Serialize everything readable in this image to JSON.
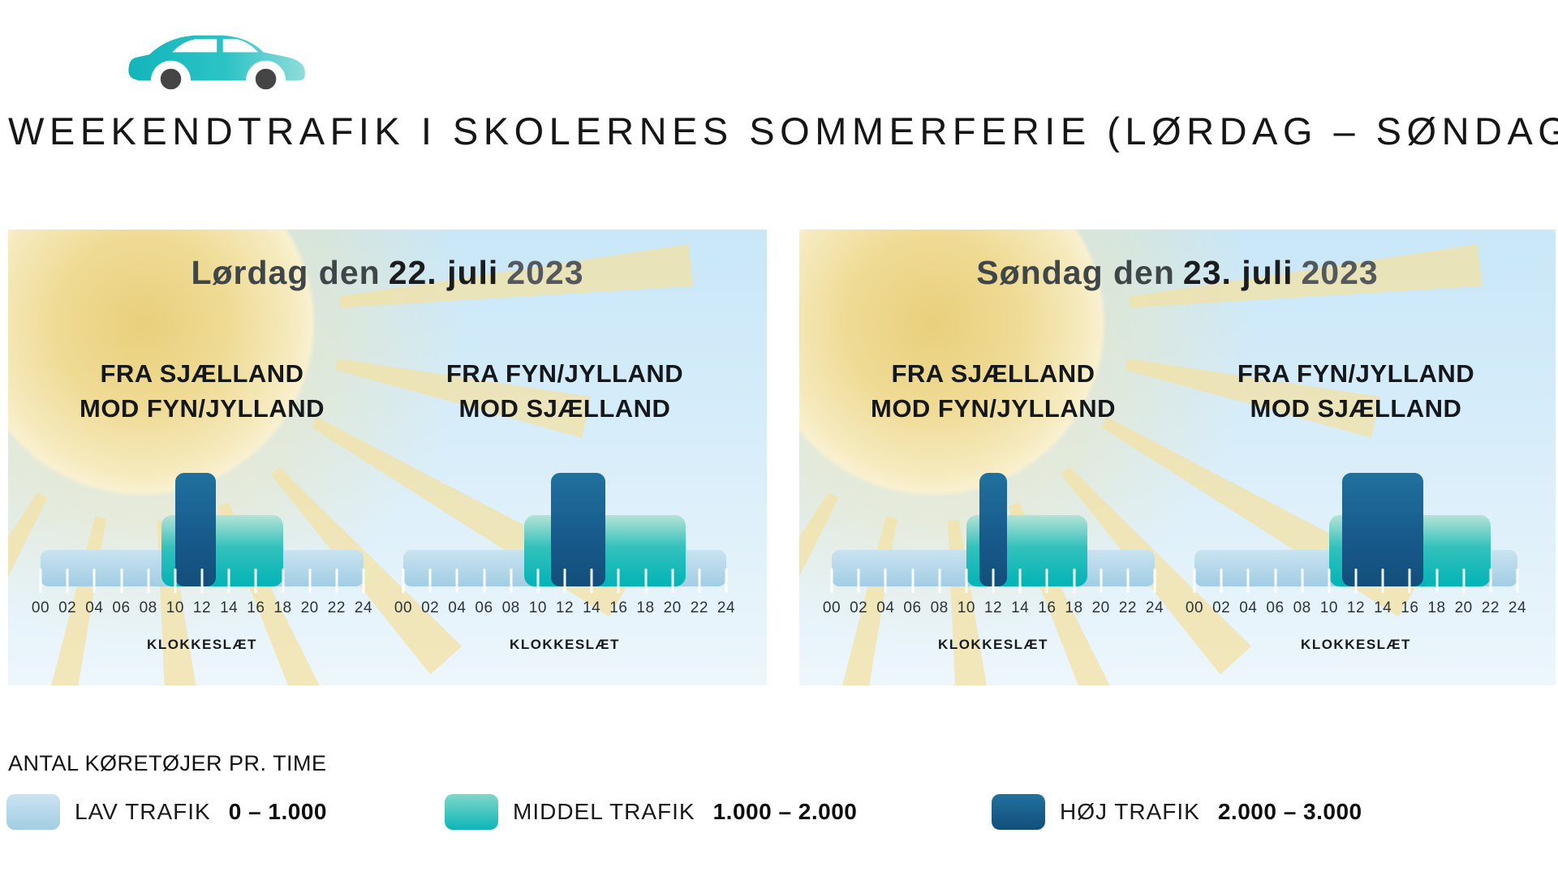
{
  "page_title": "WEEKENDTRAFIK I SKOLERNES SOMMERFERIE (LØRDAG – SØNDAG):",
  "axis": {
    "ticks": [
      "00",
      "02",
      "04",
      "06",
      "08",
      "10",
      "12",
      "14",
      "16",
      "18",
      "20",
      "22",
      "24"
    ],
    "label": "KLOKKESLÆT",
    "xlim": [
      0,
      24
    ]
  },
  "panels": [
    {
      "header": {
        "day": "Lørdag den",
        "date": "22. juli",
        "year": "2023"
      },
      "charts": [
        {
          "title1": "FRA SJÆLLAND",
          "title2": "MOD FYN/JYLLAND",
          "bands": {
            "low": [
              0,
              24
            ],
            "mid": [
              9,
              18
            ],
            "high": [
              10,
              13
            ]
          }
        },
        {
          "title1": "FRA FYN/JYLLAND",
          "title2": "MOD SJÆLLAND",
          "bands": {
            "low": [
              0,
              24
            ],
            "mid": [
              9,
              21
            ],
            "high": [
              11,
              15
            ]
          }
        }
      ]
    },
    {
      "header": {
        "day": "Søndag den",
        "date": "23. juli",
        "year": "2023"
      },
      "charts": [
        {
          "title1": "FRA SJÆLLAND",
          "title2": "MOD FYN/JYLLAND",
          "bands": {
            "low": [
              0,
              24
            ],
            "mid": [
              10,
              19
            ],
            "high": [
              11,
              13
            ]
          }
        },
        {
          "title1": "FRA FYN/JYLLAND",
          "title2": "MOD SJÆLLAND",
          "bands": {
            "low": [
              0,
              24
            ],
            "mid": [
              10,
              22
            ],
            "high": [
              11,
              17
            ]
          }
        }
      ]
    }
  ],
  "legend": {
    "heading": "ANTAL KØRETØJER PR. TIME",
    "items": [
      {
        "id": "low",
        "label": "LAV TRAFIK",
        "range": "0 – 1.000"
      },
      {
        "id": "mid",
        "label": "MIDDEL TRAFIK",
        "range": "1.000 – 2.000"
      },
      {
        "id": "high",
        "label": "HØJ TRAFIK",
        "range": "2.000 – 3.000"
      }
    ]
  },
  "colors": {
    "low": "#a9d2e7",
    "mid": "#0cb5b8",
    "high": "#14537e",
    "sun": "#f3e2a4",
    "sky_top": "#c9e7f8",
    "car": "#2cc3c6",
    "wheel": "#454545"
  },
  "chart_data": [
    {
      "type": "bar",
      "title": "Lørdag den 22. juli 2023 — Fra Sjælland mod Fyn/Jylland",
      "xlabel": "KLOKKESLÆT",
      "ylabel": "ANTAL KØRETØJER PR. TIME",
      "xlim": [
        0,
        24
      ],
      "x_ticks": [
        "00",
        "02",
        "04",
        "06",
        "08",
        "10",
        "12",
        "14",
        "16",
        "18",
        "20",
        "22",
        "24"
      ],
      "bands": [
        {
          "level": "LAV TRAFIK",
          "volume": "0 – 1.000",
          "from_hour": 0,
          "to_hour": 24
        },
        {
          "level": "MIDDEL TRAFIK",
          "volume": "1.000 – 2.000",
          "from_hour": 9,
          "to_hour": 18
        },
        {
          "level": "HØJ TRAFIK",
          "volume": "2.000 – 3.000",
          "from_hour": 10,
          "to_hour": 13
        }
      ]
    },
    {
      "type": "bar",
      "title": "Lørdag den 22. juli 2023 — Fra Fyn/Jylland mod Sjælland",
      "xlabel": "KLOKKESLÆT",
      "ylabel": "ANTAL KØRETØJER PR. TIME",
      "xlim": [
        0,
        24
      ],
      "x_ticks": [
        "00",
        "02",
        "04",
        "06",
        "08",
        "10",
        "12",
        "14",
        "16",
        "18",
        "20",
        "22",
        "24"
      ],
      "bands": [
        {
          "level": "LAV TRAFIK",
          "volume": "0 – 1.000",
          "from_hour": 0,
          "to_hour": 24
        },
        {
          "level": "MIDDEL TRAFIK",
          "volume": "1.000 – 2.000",
          "from_hour": 9,
          "to_hour": 21
        },
        {
          "level": "HØJ TRAFIK",
          "volume": "2.000 – 3.000",
          "from_hour": 11,
          "to_hour": 15
        }
      ]
    },
    {
      "type": "bar",
      "title": "Søndag den 23. juli 2023 — Fra Sjælland mod Fyn/Jylland",
      "xlabel": "KLOKKESLÆT",
      "ylabel": "ANTAL KØRETØJER PR. TIME",
      "xlim": [
        0,
        24
      ],
      "x_ticks": [
        "00",
        "02",
        "04",
        "06",
        "08",
        "10",
        "12",
        "14",
        "16",
        "18",
        "20",
        "22",
        "24"
      ],
      "bands": [
        {
          "level": "LAV TRAFIK",
          "volume": "0 – 1.000",
          "from_hour": 0,
          "to_hour": 24
        },
        {
          "level": "MIDDEL TRAFIK",
          "volume": "1.000 – 2.000",
          "from_hour": 10,
          "to_hour": 19
        },
        {
          "level": "HØJ TRAFIK",
          "volume": "2.000 – 3.000",
          "from_hour": 11,
          "to_hour": 13
        }
      ]
    },
    {
      "type": "bar",
      "title": "Søndag den 23. juli 2023 — Fra Fyn/Jylland mod Sjælland",
      "xlabel": "KLOKKESLÆT",
      "ylabel": "ANTAL KØRETØJER PR. TIME",
      "xlim": [
        0,
        24
      ],
      "x_ticks": [
        "00",
        "02",
        "04",
        "06",
        "08",
        "10",
        "12",
        "14",
        "16",
        "18",
        "20",
        "22",
        "24"
      ],
      "bands": [
        {
          "level": "LAV TRAFIK",
          "volume": "0 – 1.000",
          "from_hour": 0,
          "to_hour": 24
        },
        {
          "level": "MIDDEL TRAFIK",
          "volume": "1.000 – 2.000",
          "from_hour": 10,
          "to_hour": 22
        },
        {
          "level": "HØJ TRAFIK",
          "volume": "2.000 – 3.000",
          "from_hour": 11,
          "to_hour": 17
        }
      ]
    }
  ]
}
